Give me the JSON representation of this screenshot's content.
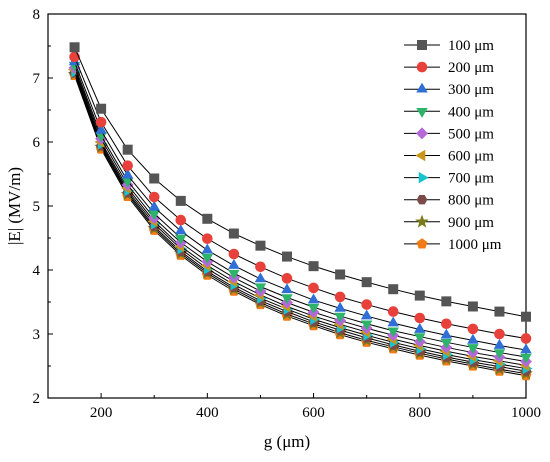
{
  "chart_data": {
    "type": "line",
    "title": "",
    "xlabel": "g (μm)",
    "ylabel": "|E| (MV/m)",
    "xlim": [
      100,
      1000
    ],
    "ylim": [
      2,
      8
    ],
    "xticks": [
      200,
      400,
      600,
      800,
      1000
    ],
    "yticks": [
      2,
      3,
      4,
      5,
      6,
      7,
      8
    ],
    "grid": false,
    "legend_position": "top-right",
    "x": [
      150,
      200,
      250,
      300,
      350,
      400,
      450,
      500,
      550,
      600,
      650,
      700,
      750,
      800,
      850,
      900,
      950,
      1000
    ],
    "series": [
      {
        "name": "100 μm",
        "color": "#555555",
        "marker": "square",
        "values": [
          7.48,
          6.52,
          5.88,
          5.43,
          5.08,
          4.8,
          4.57,
          4.38,
          4.21,
          4.06,
          3.93,
          3.81,
          3.7,
          3.6,
          3.51,
          3.43,
          3.35,
          3.27
        ]
      },
      {
        "name": "200 μm",
        "color": "#e8403a",
        "marker": "circle",
        "values": [
          7.33,
          6.31,
          5.63,
          5.14,
          4.78,
          4.49,
          4.25,
          4.05,
          3.87,
          3.72,
          3.58,
          3.46,
          3.35,
          3.25,
          3.16,
          3.08,
          3.0,
          2.93
        ]
      },
      {
        "name": "300 μm",
        "color": "#2f6fd6",
        "marker": "triangle-up",
        "values": [
          7.25,
          6.18,
          5.48,
          4.98,
          4.61,
          4.31,
          4.07,
          3.86,
          3.69,
          3.53,
          3.4,
          3.28,
          3.17,
          3.07,
          2.98,
          2.9,
          2.82,
          2.75
        ]
      },
      {
        "name": "400 μm",
        "color": "#2db36a",
        "marker": "triangle-down",
        "values": [
          7.2,
          6.1,
          5.39,
          4.88,
          4.5,
          4.2,
          3.95,
          3.74,
          3.57,
          3.42,
          3.28,
          3.16,
          3.05,
          2.96,
          2.87,
          2.79,
          2.71,
          2.64
        ]
      },
      {
        "name": "500 μm",
        "color": "#b569d8",
        "marker": "diamond",
        "values": [
          7.16,
          6.05,
          5.33,
          4.81,
          4.43,
          4.13,
          3.88,
          3.67,
          3.49,
          3.34,
          3.21,
          3.09,
          2.98,
          2.88,
          2.79,
          2.71,
          2.64,
          2.57
        ]
      },
      {
        "name": "600 μm",
        "color": "#c8961c",
        "marker": "triangle-left",
        "values": [
          7.13,
          6.0,
          5.28,
          4.76,
          4.37,
          4.07,
          3.82,
          3.61,
          3.43,
          3.28,
          3.15,
          3.03,
          2.92,
          2.82,
          2.73,
          2.65,
          2.58,
          2.51
        ]
      },
      {
        "name": "700 μm",
        "color": "#18c3cc",
        "marker": "triangle-right",
        "values": [
          7.1,
          5.97,
          5.24,
          4.72,
          4.33,
          4.02,
          3.77,
          3.56,
          3.39,
          3.23,
          3.1,
          2.98,
          2.87,
          2.77,
          2.68,
          2.6,
          2.53,
          2.46
        ]
      },
      {
        "name": "800 μm",
        "color": "#7a4b48",
        "marker": "hexagon",
        "values": [
          7.08,
          5.94,
          5.21,
          4.68,
          4.29,
          3.98,
          3.73,
          3.52,
          3.35,
          3.19,
          3.06,
          2.94,
          2.83,
          2.73,
          2.64,
          2.56,
          2.49,
          2.42
        ]
      },
      {
        "name": "900 μm",
        "color": "#7a7a1c",
        "marker": "star",
        "values": [
          7.06,
          5.92,
          5.18,
          4.65,
          4.26,
          3.95,
          3.7,
          3.49,
          3.31,
          3.16,
          3.02,
          2.9,
          2.8,
          2.7,
          2.61,
          2.53,
          2.45,
          2.38
        ]
      },
      {
        "name": "1000 μm",
        "color": "#f47a16",
        "marker": "pentagon",
        "values": [
          7.04,
          5.89,
          5.15,
          4.62,
          4.23,
          3.92,
          3.67,
          3.46,
          3.28,
          3.13,
          2.99,
          2.87,
          2.77,
          2.67,
          2.58,
          2.5,
          2.42,
          2.35
        ]
      }
    ]
  }
}
